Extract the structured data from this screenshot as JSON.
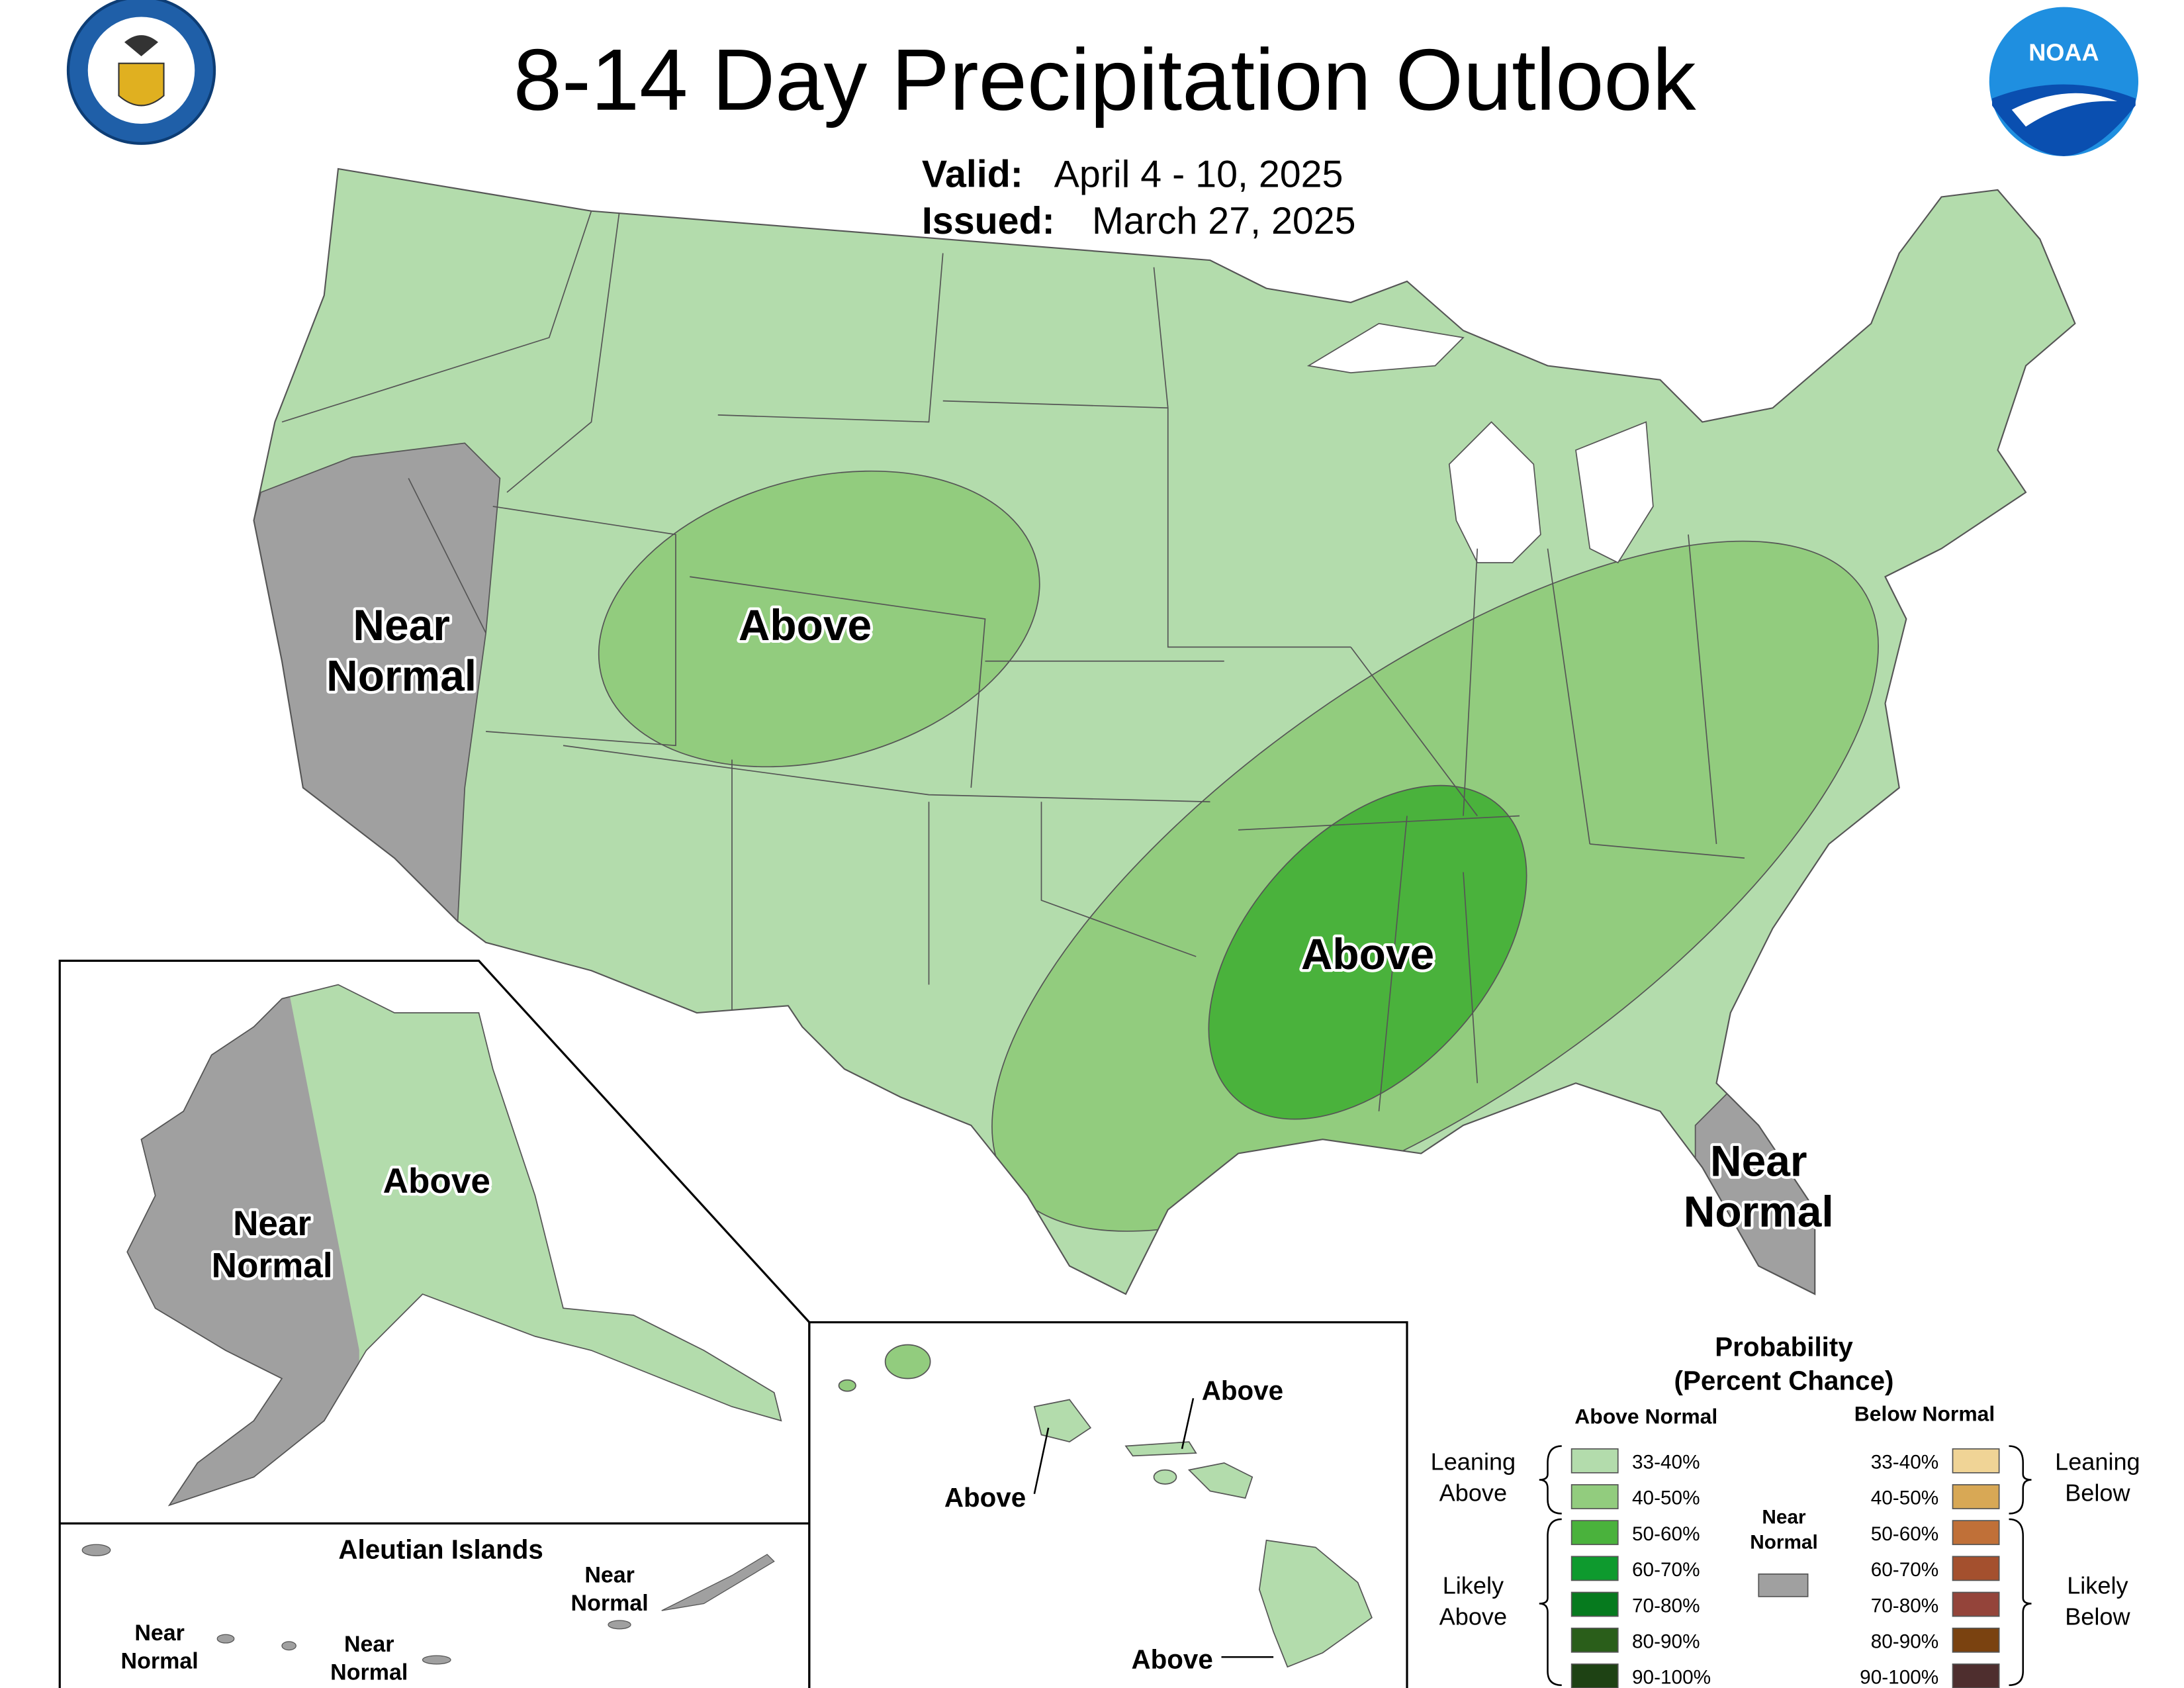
{
  "header": {
    "title": "8-14 Day Precipitation Outlook",
    "valid_label": "Valid:",
    "valid": "April 4 - 10, 2025",
    "issued_label": "Issued:",
    "issued": "March 27, 2025"
  },
  "logos": {
    "noaa": "NOAA"
  },
  "conus_labels": [
    {
      "lines": [
        "Near",
        "Normal"
      ]
    },
    {
      "lines": [
        "Above"
      ]
    },
    {
      "lines": [
        "Above"
      ]
    },
    {
      "lines": [
        "Near",
        "Normal"
      ]
    }
  ],
  "alaska_labels": [
    {
      "lines": [
        "Above"
      ]
    },
    {
      "lines": [
        "Near",
        "Normal"
      ]
    }
  ],
  "aleutian": {
    "title": "Aleutian Islands",
    "labels": [
      {
        "lines": [
          "Near",
          "Normal"
        ]
      },
      {
        "lines": [
          "Near",
          "Normal"
        ]
      },
      {
        "lines": [
          "Near",
          "Normal"
        ]
      }
    ]
  },
  "hawaii_labels": [
    {
      "lines": [
        "Above"
      ]
    },
    {
      "lines": [
        "Above"
      ]
    },
    {
      "lines": [
        "Above"
      ]
    }
  ],
  "legend": {
    "title_lines": [
      "Probability",
      "(Percent Chance)"
    ],
    "above_header": "Above Normal",
    "below_header": "Below Normal",
    "above": [
      {
        "range": "33-40%",
        "color": "#b3dcac"
      },
      {
        "range": "40-50%",
        "color": "#92cc7e"
      },
      {
        "range": "50-60%",
        "color": "#4ab23c"
      },
      {
        "range": "60-70%",
        "color": "#0e9a2e"
      },
      {
        "range": "70-80%",
        "color": "#067a1e"
      },
      {
        "range": "80-90%",
        "color": "#2a5e1a"
      },
      {
        "range": "90-100%",
        "color": "#1e4214"
      }
    ],
    "below": [
      {
        "range": "33-40%",
        "color": "#f0d496"
      },
      {
        "range": "40-50%",
        "color": "#d8a855"
      },
      {
        "range": "50-60%",
        "color": "#c07038"
      },
      {
        "range": "60-70%",
        "color": "#a4502e"
      },
      {
        "range": "70-80%",
        "color": "#94443a"
      },
      {
        "range": "80-90%",
        "color": "#7a4210"
      },
      {
        "range": "90-100%",
        "color": "#4e2e2e"
      }
    ],
    "near_normal": {
      "lines": [
        "Near",
        "Normal"
      ],
      "color": "#a0a0a0"
    },
    "groups": {
      "leaning_above": [
        "Leaning",
        "Above"
      ],
      "likely_above": [
        "Likely",
        "Above"
      ],
      "leaning_below": [
        "Leaning",
        "Below"
      ],
      "likely_below": [
        "Likely",
        "Below"
      ]
    }
  }
}
